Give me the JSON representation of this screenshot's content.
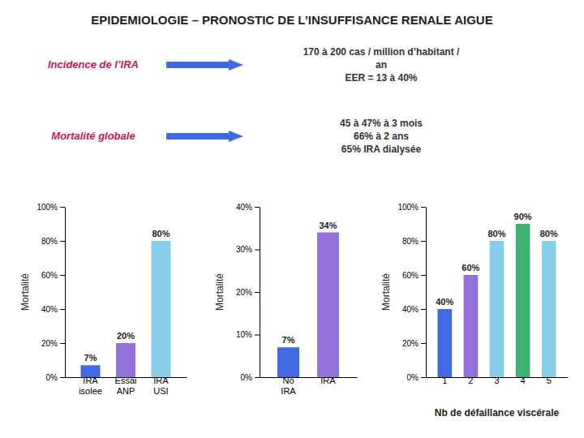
{
  "chart_data": [
    {
      "type": "bar",
      "title": "EPIDEMIOLOGIE – PRONOSTIC DE L’INSUFFISANCE RENALE AIGUE",
      "annotations": [
        "Incidence de l’IRA",
        "170 à 200 cas / million d’habitant /\nan\nEER = 13 à 40%",
        "Mortalité globale",
        "45 à 47%  à 3 mois\n66%  à 2 ans\n65% IRA dialysée"
      ],
      "categories": [
        "IRA\nisolee",
        "Essai\nANP",
        "IRA\nUSI"
      ],
      "values": [
        7,
        20,
        80
      ],
      "value_labels": [
        "7%",
        "20%",
        "80%"
      ],
      "data_labels": true,
      "colors": [
        "#4169E1",
        "#9370DB",
        "#87CEEB"
      ],
      "ylabel": "Mortalité",
      "ylim": [
        0,
        100
      ],
      "yticks": [
        {
          "value": 0,
          "label": "0%"
        },
        {
          "value": 20,
          "label": "20%"
        },
        {
          "value": 40,
          "label": "40%"
        },
        {
          "value": 60,
          "label": "60%"
        },
        {
          "value": 80,
          "label": "80%"
        },
        {
          "value": 100,
          "label": "100%"
        }
      ]
    },
    {
      "type": "bar",
      "categories": [
        "No\nIRA",
        "IRA"
      ],
      "values": [
        7,
        34
      ],
      "value_labels": [
        "7%",
        "34%"
      ],
      "data_labels": true,
      "colors": [
        "#4169E1",
        "#9370DB"
      ],
      "ylabel": "Mortalité",
      "ylim": [
        0,
        40
      ],
      "yticks": [
        {
          "value": 0,
          "label": "0%"
        },
        {
          "value": 10,
          "label": "10%"
        },
        {
          "value": 20,
          "label": "20%"
        },
        {
          "value": 30,
          "label": "30%"
        },
        {
          "value": 40,
          "label": "40%"
        }
      ]
    },
    {
      "type": "bar",
      "categories": [
        "1",
        "2",
        "3",
        "4",
        "5"
      ],
      "values": [
        40,
        60,
        80,
        90,
        80
      ],
      "value_labels": [
        "40%",
        "60%",
        "80%",
        "90%",
        "80%"
      ],
      "data_labels": true,
      "colors": [
        "#4169E1",
        "#9370DB",
        "#87CEEB",
        "#3CB371",
        "#87CEEB"
      ],
      "ylabel": "Mortalité",
      "xlabel": "Nb de défaillance viscérale",
      "ylim": [
        0,
        100
      ],
      "yticks": [
        {
          "value": 0,
          "label": "0%"
        },
        {
          "value": 20,
          "label": "20%"
        },
        {
          "value": 40,
          "label": "40%"
        },
        {
          "value": 60,
          "label": "60%"
        },
        {
          "value": 80,
          "label": "80%"
        },
        {
          "value": 100,
          "label": "100%"
        }
      ]
    }
  ]
}
